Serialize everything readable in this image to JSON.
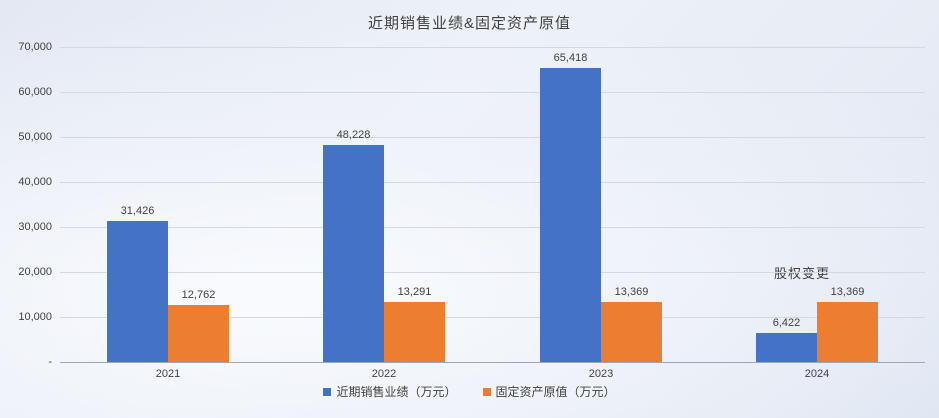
{
  "chart_data": {
    "type": "bar",
    "title": "近期销售业绩&固定资产原值",
    "categories": [
      "2021",
      "2022",
      "2023",
      "2024"
    ],
    "series": [
      {
        "key": "sales",
        "name": "近期销售业绩（万元）",
        "color": "#4472C4",
        "values": [
          31426,
          48228,
          65418,
          6422
        ],
        "labels": [
          "31,426",
          "48,228",
          "65,418",
          "6,422"
        ]
      },
      {
        "key": "assets",
        "name": "固定资产原值（万元）",
        "color": "#ED7D31",
        "values": [
          12762,
          13291,
          13369,
          13369
        ],
        "labels": [
          "12,762",
          "13,291",
          "13,369",
          "13,369"
        ]
      }
    ],
    "ylim": [
      0,
      70000
    ],
    "ytick_interval": 10000,
    "ytick_labels": [
      "-",
      "10,000",
      "20,000",
      "30,000",
      "40,000",
      "50,000",
      "60,000",
      "70,000"
    ],
    "grid": true,
    "legend_position": "bottom",
    "annotation": {
      "text": "股权变更",
      "category": "2024"
    }
  },
  "colors": {
    "series_blue": "#4472C4",
    "series_orange": "#ED7D31",
    "gridline": "#D4D9E1",
    "axis_line": "#A0A6B0",
    "text": "#404040"
  }
}
